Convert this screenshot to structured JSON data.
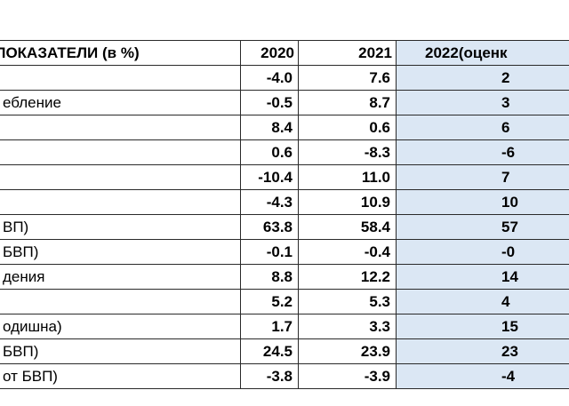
{
  "table": {
    "headers": [
      "НИ ПОКАЗАТЕЛИ (в %)",
      "2020",
      "2021",
      "2022(оценк"
    ],
    "rows": [
      {
        "label": "",
        "v2020": "-4.0",
        "v2021": "7.6",
        "v2022": "2"
      },
      {
        "label": "ебление",
        "v2020": "-0.5",
        "v2021": "8.7",
        "v2022": "3"
      },
      {
        "label": "",
        "v2020": "8.4",
        "v2021": "0.6",
        "v2022": "6"
      },
      {
        "label": "",
        "v2020": "0.6",
        "v2021": "-8.3",
        "v2022": "-6"
      },
      {
        "label": "",
        "v2020": "-10.4",
        "v2021": "11.0",
        "v2022": "7"
      },
      {
        "label": "",
        "v2020": "-4.3",
        "v2021": "10.9",
        "v2022": "10"
      },
      {
        "label": "ВП)",
        "v2020": "63.8",
        "v2021": "58.4",
        "v2022": "57"
      },
      {
        "label": "БВП)",
        "v2020": "-0.1",
        "v2021": "-0.4",
        "v2022": "-0"
      },
      {
        "label": "дения",
        "v2020": "8.8",
        "v2021": "12.2",
        "v2022": "14"
      },
      {
        "label": "",
        "v2020": "5.2",
        "v2021": "5.3",
        "v2022": "4"
      },
      {
        "label": "одишна)",
        "v2020": "1.7",
        "v2021": "3.3",
        "v2022": "15"
      },
      {
        "label": "БВП)",
        "v2020": "24.5",
        "v2021": "23.9",
        "v2022": "23"
      },
      {
        "label": "от БВП)",
        "v2020": "-3.8",
        "v2021": "-3.9",
        "v2022": "-4"
      }
    ]
  },
  "colors": {
    "estimate_fill": "#dbe7f4",
    "grid": "#2a2a2a"
  }
}
